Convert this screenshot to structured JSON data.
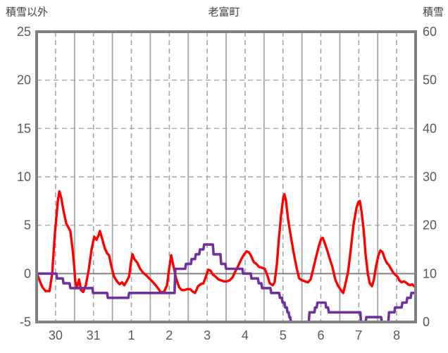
{
  "header": {
    "left_axis_title": "積雪以外",
    "chart_title": "老富町",
    "right_axis_title": "積雪"
  },
  "colors": {
    "series_other": "#ff0000",
    "series_snow": "#7030a0",
    "border": "#808080",
    "grid": "#a6a6a6",
    "zero_line": "#808080",
    "axis_label": "#595959",
    "title_text": "#404040"
  },
  "chart_data": {
    "type": "line",
    "title": "老富町",
    "x_axis": {
      "tick_labels": [
        "30",
        "31",
        "1",
        "2",
        "3",
        "4",
        "5",
        "6",
        "7",
        "8"
      ],
      "tick_positions_days": [
        0.5,
        1.5,
        2.5,
        3.5,
        4.5,
        5.5,
        6.5,
        7.5,
        8.5,
        9.5
      ],
      "range_days": [
        0,
        10
      ],
      "solid_gridlines_days": [
        1,
        2,
        3,
        4,
        5,
        6,
        7,
        8,
        9
      ],
      "dashed_gridlines_days": [
        0.5,
        1.5,
        2.5,
        3.5,
        4.5,
        5.5,
        6.5,
        7.5,
        8.5,
        9.5
      ]
    },
    "left_axis": {
      "title": "積雪以外",
      "ticks": [
        25,
        20,
        15,
        10,
        5,
        0,
        -5
      ],
      "ylim": [
        -5,
        25
      ],
      "dashed_gridlines": [
        20,
        15,
        10,
        5
      ],
      "zero_line": 0
    },
    "right_axis": {
      "title": "積雪",
      "ticks": [
        60,
        50,
        40,
        30,
        20,
        10,
        0
      ],
      "ylim": [
        0,
        60
      ]
    },
    "legend": "none",
    "grid": "on",
    "series": [
      {
        "name": "積雪以外",
        "axis": "left",
        "color": "#ff0000",
        "points": [
          [
            0,
            0
          ],
          [
            0.06,
            -0.5
          ],
          [
            0.15,
            -1.4
          ],
          [
            0.24,
            -1.8
          ],
          [
            0.34,
            -1.8
          ],
          [
            0.41,
            0
          ],
          [
            0.48,
            4
          ],
          [
            0.56,
            7.5
          ],
          [
            0.6,
            8.5
          ],
          [
            0.65,
            7.8
          ],
          [
            0.71,
            6.5
          ],
          [
            0.78,
            5.2
          ],
          [
            0.86,
            4.6
          ],
          [
            0.89,
            4.4
          ],
          [
            0.95,
            2.5
          ],
          [
            0.99,
            0.8
          ],
          [
            1.02,
            -0.8
          ],
          [
            1.06,
            -1.5
          ],
          [
            1.12,
            -0.6
          ],
          [
            1.17,
            -1.7
          ],
          [
            1.23,
            -1.9
          ],
          [
            1.3,
            -1.2
          ],
          [
            1.38,
            0.5
          ],
          [
            1.45,
            2.5
          ],
          [
            1.52,
            3.8
          ],
          [
            1.58,
            3.5
          ],
          [
            1.64,
            4
          ],
          [
            1.67,
            4.4
          ],
          [
            1.73,
            3.6
          ],
          [
            1.8,
            2.6
          ],
          [
            1.86,
            2.1
          ],
          [
            1.91,
            1.9
          ],
          [
            1.97,
            0.8
          ],
          [
            2.04,
            -0.3
          ],
          [
            2.12,
            -0.8
          ],
          [
            2.19,
            -1.1
          ],
          [
            2.25,
            -0.9
          ],
          [
            2.31,
            -1.2
          ],
          [
            2.36,
            -0.9
          ],
          [
            2.44,
            -0.3
          ],
          [
            2.49,
            1.2
          ],
          [
            2.53,
            2
          ],
          [
            2.58,
            1.5
          ],
          [
            2.66,
            1.1
          ],
          [
            2.73,
            0.5
          ],
          [
            2.81,
            0.1
          ],
          [
            2.9,
            -0.2
          ],
          [
            2.97,
            -0.5
          ],
          [
            3.05,
            -0.8
          ],
          [
            3.12,
            -1.1
          ],
          [
            3.2,
            -1.5
          ],
          [
            3.27,
            -1.9
          ],
          [
            3.36,
            -1.9
          ],
          [
            3.44,
            -1.2
          ],
          [
            3.49,
            0.3
          ],
          [
            3.55,
            1.9
          ],
          [
            3.61,
            0.8
          ],
          [
            3.68,
            -0.5
          ],
          [
            3.76,
            -1.4
          ],
          [
            3.83,
            -1.7
          ],
          [
            3.9,
            -1.7
          ],
          [
            3.98,
            -1.6
          ],
          [
            4.05,
            -1.6
          ],
          [
            4.13,
            -1.9
          ],
          [
            4.18,
            -2
          ],
          [
            4.26,
            -1.3
          ],
          [
            4.33,
            -1.1
          ],
          [
            4.4,
            -1
          ],
          [
            4.46,
            -0.4
          ],
          [
            4.53,
            0.4
          ],
          [
            4.59,
            0.3
          ],
          [
            4.65,
            -0.1
          ],
          [
            4.72,
            -0.3
          ],
          [
            4.8,
            -0.6
          ],
          [
            4.87,
            -0.7
          ],
          [
            4.94,
            -0.8
          ],
          [
            5.02,
            -0.8
          ],
          [
            5.09,
            -0.7
          ],
          [
            5.17,
            -0.4
          ],
          [
            5.24,
            0.2
          ],
          [
            5.32,
            0.8
          ],
          [
            5.39,
            1.4
          ],
          [
            5.46,
            1.9
          ],
          [
            5.54,
            2.3
          ],
          [
            5.6,
            2.2
          ],
          [
            5.65,
            1.9
          ],
          [
            5.73,
            1.2
          ],
          [
            5.8,
            1
          ],
          [
            5.87,
            0.7
          ],
          [
            5.95,
            0.6
          ],
          [
            6.02,
            0.5
          ],
          [
            6.1,
            -0.3
          ],
          [
            6.15,
            -1
          ],
          [
            6.23,
            -1.2
          ],
          [
            6.28,
            -0.9
          ],
          [
            6.34,
            1
          ],
          [
            6.39,
            3.5
          ],
          [
            6.45,
            6
          ],
          [
            6.51,
            7.9
          ],
          [
            6.54,
            8.2
          ],
          [
            6.58,
            7.5
          ],
          [
            6.64,
            5.5
          ],
          [
            6.71,
            3.8
          ],
          [
            6.78,
            2.2
          ],
          [
            6.86,
            0.6
          ],
          [
            6.93,
            -0.5
          ],
          [
            7.01,
            -0.7
          ],
          [
            7.08,
            -0.8
          ],
          [
            7.16,
            -0.9
          ],
          [
            7.23,
            -0.6
          ],
          [
            7.3,
            0.5
          ],
          [
            7.38,
            1.8
          ],
          [
            7.45,
            2.9
          ],
          [
            7.51,
            3.6
          ],
          [
            7.55,
            3.7
          ],
          [
            7.6,
            3.2
          ],
          [
            7.66,
            2.5
          ],
          [
            7.73,
            1.6
          ],
          [
            7.81,
            0.6
          ],
          [
            7.88,
            -0.6
          ],
          [
            7.96,
            -1.3
          ],
          [
            8.03,
            -1.7
          ],
          [
            8.09,
            -2
          ],
          [
            8.14,
            -1.2
          ],
          [
            8.22,
            0.2
          ],
          [
            8.29,
            2.5
          ],
          [
            8.36,
            5
          ],
          [
            8.44,
            6.8
          ],
          [
            8.49,
            7.4
          ],
          [
            8.53,
            7.5
          ],
          [
            8.57,
            6.5
          ],
          [
            8.63,
            4.5
          ],
          [
            8.68,
            2
          ],
          [
            8.74,
            0
          ],
          [
            8.79,
            -1
          ],
          [
            8.85,
            -1.3
          ],
          [
            8.9,
            -0.6
          ],
          [
            8.96,
            0.8
          ],
          [
            9.02,
            1.9
          ],
          [
            9.07,
            2.4
          ],
          [
            9.13,
            2.2
          ],
          [
            9.18,
            1.6
          ],
          [
            9.24,
            1.1
          ],
          [
            9.29,
            0.9
          ],
          [
            9.35,
            0.5
          ],
          [
            9.41,
            0.1
          ],
          [
            9.46,
            -0.1
          ],
          [
            9.52,
            -0.3
          ],
          [
            9.57,
            -0.7
          ],
          [
            9.63,
            -0.9
          ],
          [
            9.68,
            -0.8
          ],
          [
            9.74,
            -0.9
          ],
          [
            9.8,
            -1.1
          ],
          [
            9.85,
            -1.2
          ],
          [
            9.91,
            -1.1
          ],
          [
            9.96,
            -1.3
          ],
          [
            10,
            -1.4
          ]
        ]
      },
      {
        "name": "積雪",
        "axis": "right",
        "color": "#7030a0",
        "steps_cm": [
          [
            0,
            0.52,
            10
          ],
          [
            0.54,
            0.69,
            9
          ],
          [
            0.71,
            0.87,
            8
          ],
          [
            0.89,
            1.47,
            7
          ],
          [
            1.49,
            1.86,
            6
          ],
          [
            1.88,
            2.42,
            5
          ],
          [
            2.44,
            3.64,
            6
          ],
          [
            3.66,
            3.92,
            11
          ],
          [
            3.94,
            4.07,
            12
          ],
          [
            4.09,
            4.18,
            13
          ],
          [
            4.2,
            4.29,
            14
          ],
          [
            4.31,
            4.4,
            15
          ],
          [
            4.42,
            4.65,
            16
          ],
          [
            4.67,
            4.85,
            14
          ],
          [
            4.87,
            4.98,
            12
          ],
          [
            5,
            5.43,
            11
          ],
          [
            5.45,
            5.65,
            10
          ],
          [
            5.67,
            5.84,
            9
          ],
          [
            5.86,
            5.93,
            8
          ],
          [
            5.95,
            6.17,
            7
          ],
          [
            6.19,
            6.4,
            6
          ],
          [
            6.42,
            6.47,
            5
          ],
          [
            6.49,
            6.54,
            4
          ],
          [
            6.56,
            6.6,
            3
          ],
          [
            6.62,
            6.65,
            2
          ],
          [
            6.67,
            6.69,
            1
          ],
          [
            6.71,
            7.18,
            0
          ],
          [
            7.2,
            7.33,
            2
          ],
          [
            7.35,
            7.39,
            3
          ],
          [
            7.41,
            7.62,
            4
          ],
          [
            7.64,
            7.69,
            3
          ],
          [
            7.71,
            8.54,
            2
          ],
          [
            8.56,
            8.68,
            0
          ],
          [
            8.7,
            9.09,
            1
          ],
          [
            9.11,
            9.28,
            0
          ],
          [
            9.3,
            9.44,
            2
          ],
          [
            9.46,
            9.63,
            3
          ],
          [
            9.65,
            9.76,
            4
          ],
          [
            9.78,
            9.87,
            5
          ],
          [
            9.89,
            10,
            6
          ]
        ]
      }
    ]
  }
}
